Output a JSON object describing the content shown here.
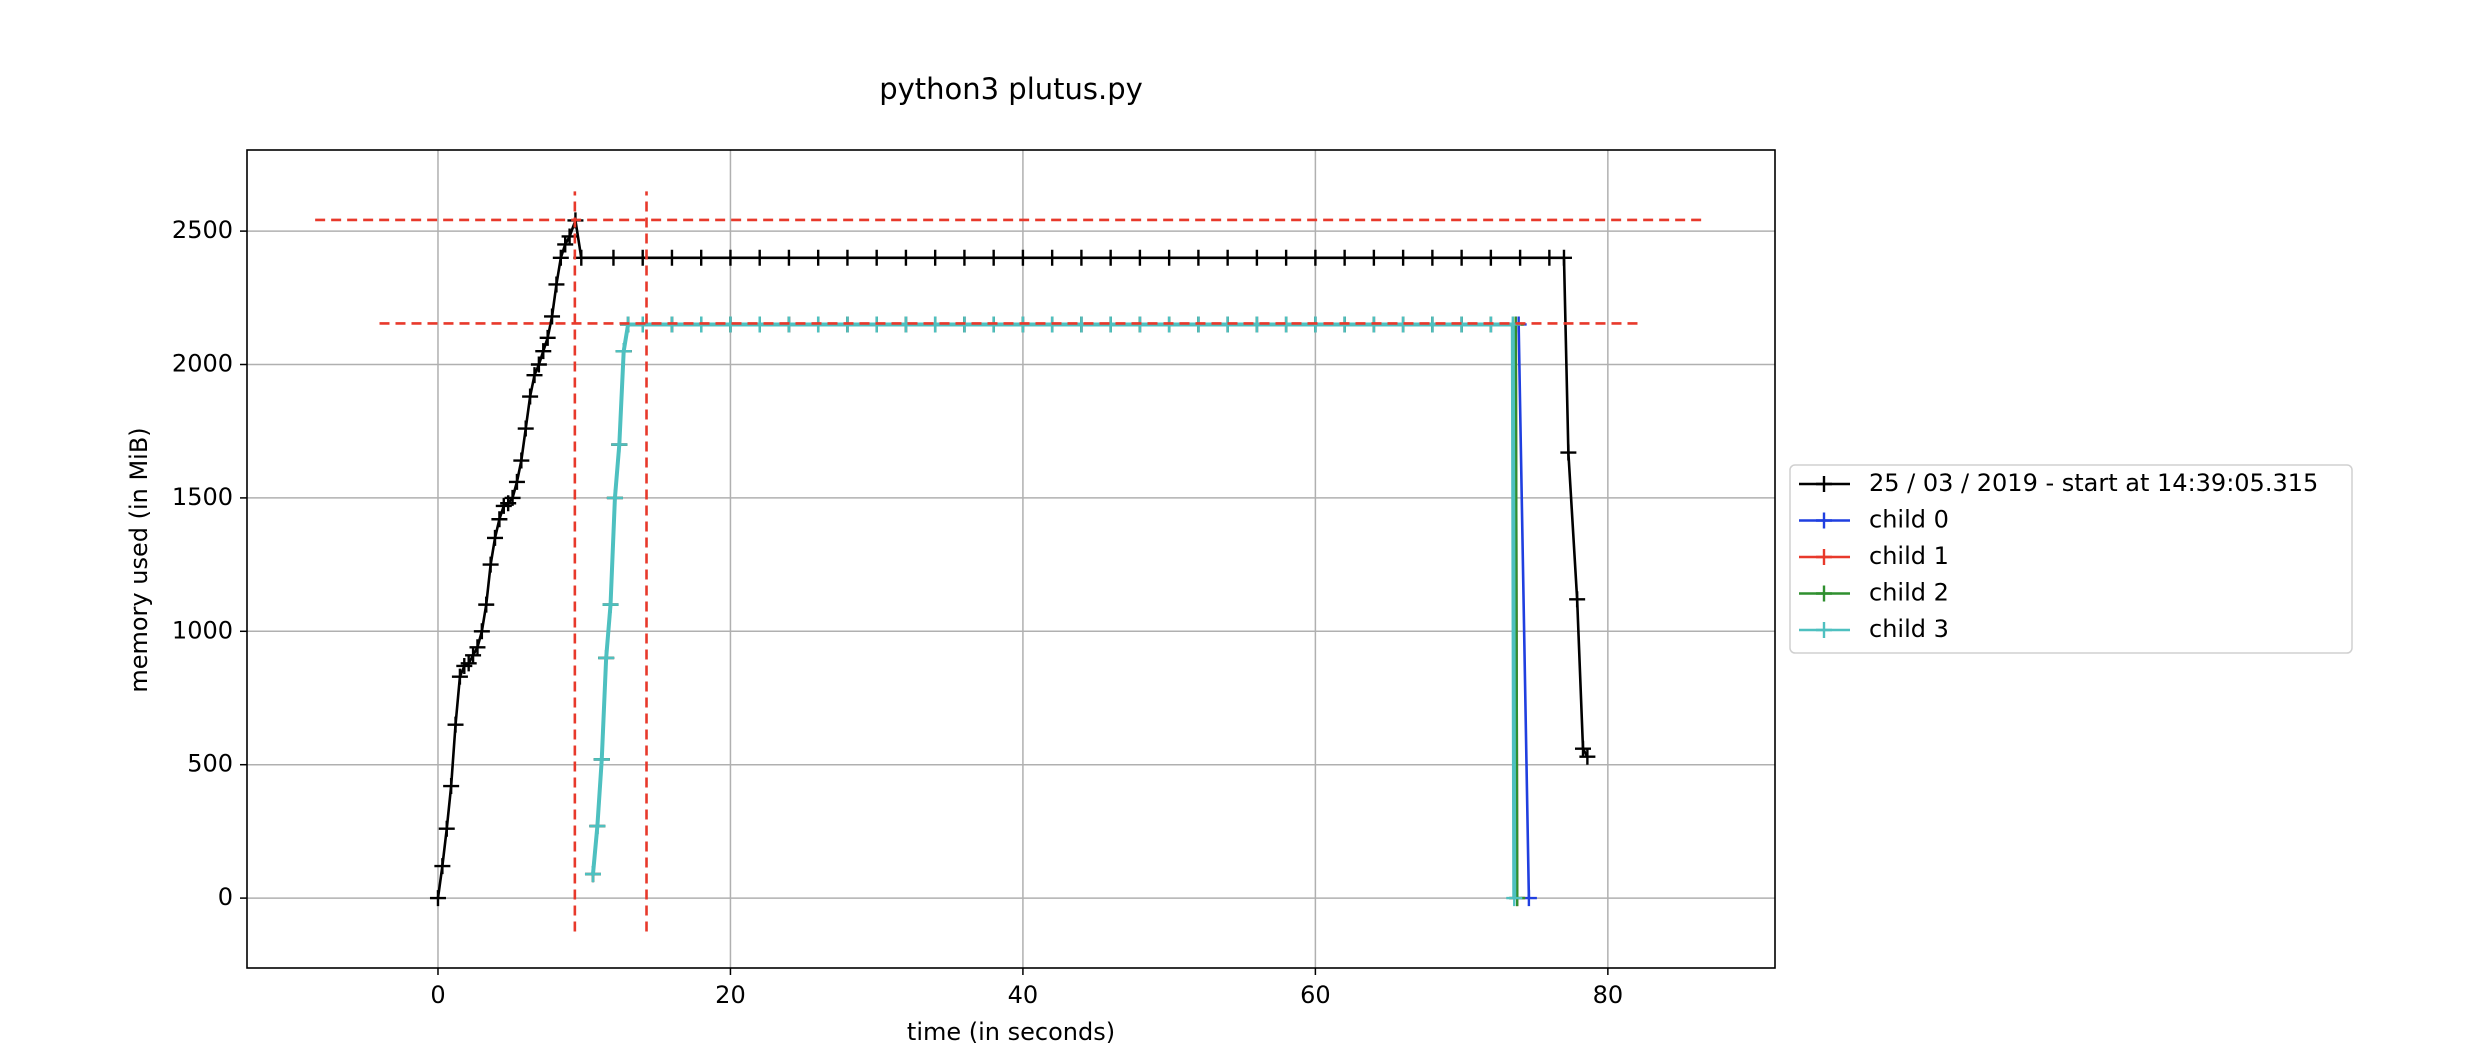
{
  "chart_data": {
    "type": "line",
    "title": "python3 plutus.py",
    "x_label": "time (in seconds)",
    "y_label": "memory used (in MiB)",
    "xlim": [
      -13.06,
      91.43
    ],
    "ylim": [
      -262,
      2804
    ],
    "xticks": [
      0,
      20,
      40,
      60,
      80
    ],
    "yticks": [
      0,
      500,
      1000,
      1500,
      2000,
      2500
    ],
    "grid": true,
    "legend": "outside right",
    "reference_lines": [
      {
        "orientation": "horizontal",
        "value": 2542,
        "range": [
          -8.4,
          86.7
        ],
        "color": "#e8392b"
      },
      {
        "orientation": "horizontal",
        "value": 2154,
        "range": [
          -4.0,
          82.2
        ],
        "color": "#e8392b"
      },
      {
        "orientation": "vertical",
        "value": 9.36,
        "range": [
          -125,
          2649
        ],
        "color": "#e8392b"
      },
      {
        "orientation": "vertical",
        "value": 14.26,
        "range": [
          -125,
          2649
        ],
        "color": "#e8392b"
      }
    ],
    "series": [
      {
        "name": "25 / 03 / 2019 - start at 14:39:05.315",
        "color": "#000000",
        "x": [
          0,
          0.3,
          0.6,
          0.9,
          1.2,
          1.5,
          1.8,
          2.1,
          2.4,
          2.7,
          3.0,
          3.3,
          3.6,
          3.9,
          4.2,
          4.5,
          4.8,
          5.1,
          5.4,
          5.7,
          6.0,
          6.3,
          6.6,
          6.9,
          7.2,
          7.5,
          7.8,
          8.1,
          8.4,
          8.7,
          9.0,
          9.4,
          9.8,
          12,
          14,
          16,
          18,
          20,
          22,
          24,
          26,
          28,
          30,
          32,
          34,
          36,
          38,
          40,
          42,
          44,
          46,
          48,
          50,
          52,
          54,
          56,
          58,
          60,
          62,
          64,
          66,
          68,
          70,
          72,
          74,
          76,
          77,
          77.3,
          77.9,
          78.3,
          78.6
        ],
        "values": [
          0,
          120,
          260,
          420,
          650,
          830,
          870,
          880,
          910,
          940,
          1000,
          1100,
          1250,
          1350,
          1420,
          1470,
          1480,
          1500,
          1560,
          1640,
          1760,
          1880,
          1960,
          2000,
          2050,
          2100,
          2180,
          2300,
          2400,
          2450,
          2480,
          2540,
          2400,
          2400,
          2400,
          2400,
          2400,
          2400,
          2400,
          2400,
          2400,
          2400,
          2400,
          2400,
          2400,
          2400,
          2400,
          2400,
          2400,
          2400,
          2400,
          2400,
          2400,
          2400,
          2400,
          2400,
          2400,
          2400,
          2400,
          2400,
          2400,
          2400,
          2400,
          2400,
          2400,
          2400,
          2400,
          1670,
          1120,
          560,
          530
        ]
      },
      {
        "name": "child 0",
        "color": "#1f3fe0",
        "x": [
          10.6,
          10.9,
          11.2,
          11.5,
          11.8,
          12.1,
          12.4,
          12.7,
          13.0,
          14,
          16,
          18,
          20,
          22,
          24,
          26,
          28,
          30,
          32,
          34,
          36,
          38,
          40,
          42,
          44,
          46,
          48,
          50,
          52,
          54,
          56,
          58,
          60,
          62,
          64,
          66,
          68,
          70,
          72,
          73.9,
          74.6
        ],
        "values": [
          90,
          270,
          520,
          900,
          1100,
          1500,
          1700,
          2050,
          2150,
          2150,
          2150,
          2150,
          2150,
          2150,
          2150,
          2150,
          2150,
          2150,
          2150,
          2150,
          2150,
          2150,
          2150,
          2150,
          2150,
          2150,
          2150,
          2150,
          2150,
          2150,
          2150,
          2150,
          2150,
          2150,
          2150,
          2150,
          2150,
          2150,
          2150,
          2150,
          0
        ]
      },
      {
        "name": "child 1",
        "color": "#e8392b",
        "x": [
          10.6,
          10.9,
          11.2,
          11.5,
          11.8,
          12.1,
          12.4,
          12.7,
          13.0,
          14,
          16,
          18,
          20,
          22,
          24,
          26,
          28,
          30,
          32,
          34,
          36,
          38,
          40,
          42,
          44,
          46,
          48,
          50,
          52,
          54,
          56,
          58,
          60,
          62,
          64,
          66,
          68,
          70,
          72,
          73.7,
          73.8
        ],
        "values": [
          90,
          270,
          520,
          900,
          1100,
          1500,
          1700,
          2050,
          2150,
          2150,
          2150,
          2150,
          2150,
          2150,
          2150,
          2150,
          2150,
          2150,
          2150,
          2150,
          2150,
          2150,
          2150,
          2150,
          2150,
          2150,
          2150,
          2150,
          2150,
          2150,
          2150,
          2150,
          2150,
          2150,
          2150,
          2150,
          2150,
          2150,
          2150,
          2150,
          0
        ]
      },
      {
        "name": "child 2",
        "color": "#2f8f2f",
        "x": [
          10.6,
          10.9,
          11.2,
          11.5,
          11.8,
          12.1,
          12.4,
          12.7,
          13.0,
          14,
          16,
          18,
          20,
          22,
          24,
          26,
          28,
          30,
          32,
          34,
          36,
          38,
          40,
          42,
          44,
          46,
          48,
          50,
          52,
          54,
          56,
          58,
          60,
          62,
          64,
          66,
          68,
          70,
          72,
          73.7,
          73.8
        ],
        "values": [
          90,
          270,
          520,
          900,
          1100,
          1500,
          1700,
          2050,
          2150,
          2150,
          2150,
          2150,
          2150,
          2150,
          2150,
          2150,
          2150,
          2150,
          2150,
          2150,
          2150,
          2150,
          2150,
          2150,
          2150,
          2150,
          2150,
          2150,
          2150,
          2150,
          2150,
          2150,
          2150,
          2150,
          2150,
          2150,
          2150,
          2150,
          2150,
          2150,
          0
        ]
      },
      {
        "name": "child 3",
        "color": "#4ec0c0",
        "x": [
          10.6,
          10.9,
          11.2,
          11.5,
          11.8,
          12.1,
          12.4,
          12.7,
          13.0,
          14,
          16,
          18,
          20,
          22,
          24,
          26,
          28,
          30,
          32,
          34,
          36,
          38,
          40,
          42,
          44,
          46,
          48,
          50,
          52,
          54,
          56,
          58,
          60,
          62,
          64,
          66,
          68,
          70,
          72,
          73.5,
          73.6
        ],
        "values": [
          90,
          270,
          520,
          900,
          1100,
          1500,
          1700,
          2050,
          2150,
          2150,
          2150,
          2150,
          2150,
          2150,
          2150,
          2150,
          2150,
          2150,
          2150,
          2150,
          2150,
          2150,
          2150,
          2150,
          2150,
          2150,
          2150,
          2150,
          2150,
          2150,
          2150,
          2150,
          2150,
          2150,
          2150,
          2150,
          2150,
          2150,
          2150,
          2150,
          0
        ]
      }
    ]
  }
}
